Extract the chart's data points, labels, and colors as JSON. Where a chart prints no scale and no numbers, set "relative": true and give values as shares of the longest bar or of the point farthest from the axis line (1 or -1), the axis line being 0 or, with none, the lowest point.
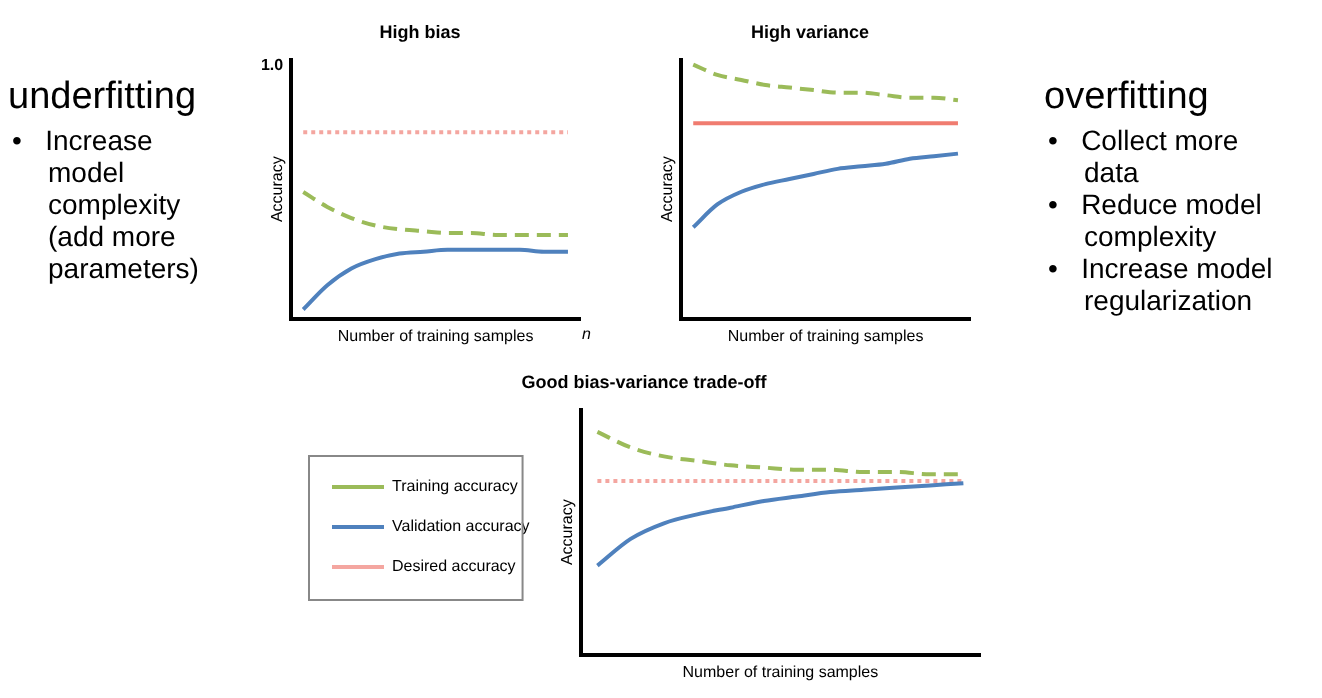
{
  "chart_data": [
    {
      "type": "other",
      "title": "underfitting",
      "annotations": [
        "• Increase model complexity (add more parameters)"
      ]
    },
    {
      "type": "line",
      "title": "High bias",
      "xlabel": "Number of training samples",
      "ylabel": "Accuracy",
      "relative": true,
      "annotations": [
        "1.0",
        "n"
      ],
      "categories": [
        null,
        null,
        null,
        null,
        null,
        null,
        null,
        null,
        null,
        null,
        null,
        null
      ],
      "series": [
        {
          "color": "#9bbb59",
          "line_style": "dashed",
          "values": [
            0.68,
            0.6,
            0.54,
            0.5,
            0.48,
            0.47,
            0.46,
            0.46,
            0.45,
            0.45,
            0.45,
            0.45
          ]
        },
        {
          "color": "#4f81bd",
          "line_style": "solid",
          "values": [
            0.05,
            0.18,
            0.27,
            0.32,
            0.35,
            0.36,
            0.37,
            0.37,
            0.37,
            0.37,
            0.36,
            0.36
          ]
        },
        {
          "color": "#f4a6a0",
          "line_style": "dotted",
          "values": [
            1,
            1,
            1,
            1,
            1,
            1,
            1,
            1,
            1,
            1,
            1,
            1
          ]
        }
      ]
    },
    {
      "type": "line",
      "title": "High variance",
      "xlabel": "Number of training samples",
      "ylabel": "Accuracy",
      "relative": true,
      "categories": [
        null,
        null,
        null,
        null,
        null,
        null,
        null,
        null,
        null,
        null,
        null,
        null
      ],
      "series": [
        {
          "color": "#9bbb59",
          "line_style": "dashed",
          "values": [
            1.0,
            0.96,
            0.94,
            0.92,
            0.91,
            0.9,
            0.89,
            0.89,
            0.88,
            0.87,
            0.87,
            0.86
          ]
        },
        {
          "color": "#4f81bd",
          "line_style": "solid",
          "values": [
            0.36,
            0.45,
            0.5,
            0.53,
            0.55,
            0.57,
            0.59,
            0.6,
            0.61,
            0.63,
            0.64,
            0.65
          ]
        },
        {
          "color": "#f07c70",
          "line_style": "solid",
          "values": [
            0.77,
            0.77,
            0.77,
            0.77,
            0.77,
            0.77,
            0.77,
            0.77,
            0.77,
            0.77,
            0.77,
            0.77
          ]
        }
      ]
    },
    {
      "type": "other",
      "title": "overfitting",
      "annotations": [
        "• Collect more data",
        "• Reduce model complexity",
        "• Increase model regularization"
      ]
    },
    {
      "type": "line",
      "title": "Good bias-variance trade-off",
      "xlabel": "Number of training samples",
      "ylabel": "Accuracy",
      "relative": true,
      "legend": "left",
      "categories": [
        null,
        null,
        null,
        null,
        null,
        null,
        null,
        null,
        null,
        null,
        null,
        null
      ],
      "series": [
        {
          "name": "Training accuracy",
          "color": "#9bbb59",
          "line_style": "dashed",
          "values": [
            1.0,
            0.93,
            0.89,
            0.87,
            0.85,
            0.84,
            0.83,
            0.83,
            0.82,
            0.82,
            0.81,
            0.81
          ]
        },
        {
          "name": "Validation accuracy",
          "color": "#4f81bd",
          "line_style": "solid",
          "values": [
            0.4,
            0.52,
            0.59,
            0.63,
            0.66,
            0.69,
            0.71,
            0.73,
            0.74,
            0.75,
            0.76,
            0.77
          ]
        },
        {
          "name": "Desired accuracy",
          "color": "#f4a6a0",
          "line_style": "dotted",
          "values": [
            0.78,
            0.78,
            0.78,
            0.78,
            0.78,
            0.78,
            0.78,
            0.78,
            0.78,
            0.78,
            0.78,
            0.78
          ]
        }
      ]
    }
  ]
}
